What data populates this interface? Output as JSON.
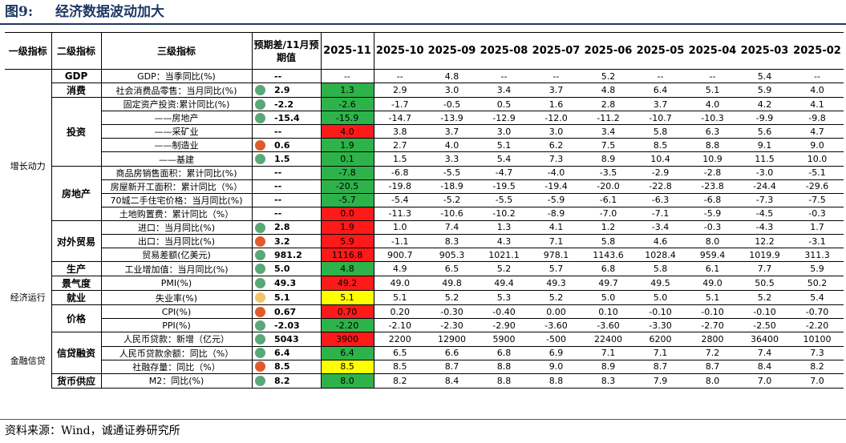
{
  "figure": {
    "number": "图9:",
    "title": "经济数据波动加大",
    "source": "资料来源：Wind，诚通证券研究所"
  },
  "colors": {
    "title": "#1f3864",
    "cell_green": "#2db34a",
    "cell_red": "#ff1a1a",
    "cell_yellow": "#ffff00",
    "dot_green": "#5aa878",
    "dot_red": "#e05a2a",
    "dot_yellow": "#f2c46a"
  },
  "header": {
    "level1": "一级指标",
    "level2": "二级指标",
    "level3": "三级指标",
    "forecast": "预期差/11月预期值",
    "months": [
      "2025-11",
      "2025-10",
      "2025-09",
      "2025-08",
      "2025-07",
      "2025-06",
      "2025-05",
      "2025-04",
      "2025-03",
      "2025-02"
    ]
  },
  "rows": [
    {
      "l1": "",
      "l2": "GDP",
      "l3": "GDP：当季同比(%)",
      "dot": "",
      "fc": "--",
      "hl": "",
      "cur": "--",
      "vals": [
        "--",
        "4.8",
        "--",
        "--",
        "5.2",
        "--",
        "--",
        "5.4",
        "--"
      ]
    },
    {
      "l1": "",
      "l2": "消费",
      "l3": "社会消费品零售：当月同比(%)",
      "dot": "green",
      "fc": "2.9",
      "hl": "green",
      "cur": "1.3",
      "vals": [
        "2.9",
        "3.0",
        "3.4",
        "3.7",
        "4.8",
        "6.4",
        "5.1",
        "5.9",
        "4.0"
      ]
    },
    {
      "l1": "",
      "l2": "",
      "l3": "固定资产投资:累计同比(%)",
      "dot": "green",
      "fc": "-2.2",
      "hl": "green",
      "cur": "-2.6",
      "vals": [
        "-1.7",
        "-0.5",
        "0.5",
        "1.6",
        "2.8",
        "3.7",
        "4.0",
        "4.2",
        "4.1"
      ]
    },
    {
      "l1": "",
      "l2": "",
      "l3": "——房地产",
      "dot": "green",
      "fc": "-15.4",
      "hl": "green",
      "cur": "-15.9",
      "vals": [
        "-14.7",
        "-13.9",
        "-12.9",
        "-12.0",
        "-11.2",
        "-10.7",
        "-10.3",
        "-9.9",
        "-9.8"
      ]
    },
    {
      "l1": "",
      "l2": "投资",
      "l3": "——采矿业",
      "dot": "",
      "fc": "--",
      "hl": "red",
      "cur": "4.0",
      "vals": [
        "3.8",
        "3.7",
        "3.0",
        "3.0",
        "3.4",
        "5.8",
        "6.3",
        "5.6",
        "4.7"
      ]
    },
    {
      "l1": "",
      "l2": "",
      "l3": "——制造业",
      "dot": "red",
      "fc": "0.6",
      "hl": "green",
      "cur": "1.9",
      "vals": [
        "2.7",
        "4.0",
        "5.1",
        "6.2",
        "7.5",
        "8.5",
        "8.8",
        "9.1",
        "9.0"
      ]
    },
    {
      "l1": "增长动力",
      "l2": "",
      "l3": "——基建",
      "dot": "green",
      "fc": "1.5",
      "hl": "green",
      "cur": "0.1",
      "vals": [
        "1.5",
        "3.3",
        "5.4",
        "7.3",
        "8.9",
        "10.4",
        "10.9",
        "11.5",
        "10.0"
      ]
    },
    {
      "l1": "",
      "l2": "",
      "l3": "商品房销售面积：累计同比(%)",
      "dot": "",
      "fc": "--",
      "hl": "green",
      "cur": "-7.8",
      "vals": [
        "-6.8",
        "-5.5",
        "-4.7",
        "-4.0",
        "-3.5",
        "-2.9",
        "-2.8",
        "-3.0",
        "-5.1"
      ]
    },
    {
      "l1": "",
      "l2": "房地产",
      "l3": "房屋新开工面积：累计同比（%）",
      "dot": "",
      "fc": "--",
      "hl": "green",
      "cur": "-20.5",
      "vals": [
        "-19.8",
        "-18.9",
        "-19.5",
        "-19.4",
        "-20.0",
        "-22.8",
        "-23.8",
        "-24.4",
        "-29.6"
      ]
    },
    {
      "l1": "",
      "l2": "",
      "l3": "70城二手住宅价格：当月同比(%)",
      "dot": "",
      "fc": "--",
      "hl": "green",
      "cur": "-5.7",
      "vals": [
        "-5.4",
        "-5.2",
        "-5.5",
        "-5.9",
        "-6.1",
        "-6.3",
        "-6.8",
        "-7.3",
        "-7.5"
      ]
    },
    {
      "l1": "",
      "l2": "",
      "l3": "土地购置费：累计同比（%）",
      "dot": "",
      "fc": "--",
      "hl": "red",
      "cur": "0.0",
      "vals": [
        "-11.3",
        "-10.6",
        "-10.2",
        "-8.9",
        "-7.0",
        "-7.1",
        "-5.9",
        "-4.5",
        "-0.3"
      ]
    },
    {
      "l1": "",
      "l2": "",
      "l3": "进口：当月同比(%)",
      "dot": "green",
      "fc": "2.8",
      "hl": "red",
      "cur": "1.9",
      "vals": [
        "1.0",
        "7.4",
        "1.3",
        "4.1",
        "1.2",
        "-3.4",
        "-0.3",
        "-4.3",
        "1.7"
      ]
    },
    {
      "l1": "",
      "l2": "对外贸易",
      "l3": "出口：当月同比(%)",
      "dot": "red",
      "fc": "3.2",
      "hl": "red",
      "cur": "5.9",
      "vals": [
        "-1.1",
        "8.3",
        "4.3",
        "7.1",
        "5.8",
        "4.6",
        "8.0",
        "12.2",
        "-3.1"
      ]
    },
    {
      "l1": "",
      "l2": "",
      "l3": "贸易差额(亿美元)",
      "dot": "green",
      "fc": "981.2",
      "hl": "red",
      "cur": "1116.8",
      "vals": [
        "900.7",
        "905.3",
        "1021.1",
        "978.1",
        "1143.6",
        "1028.4",
        "959.4",
        "1019.9",
        "311.3"
      ]
    },
    {
      "l1": "",
      "l2": "生产",
      "l3": "工业增加值：当月同比(%)",
      "dot": "green",
      "fc": "5.0",
      "hl": "green",
      "cur": "4.8",
      "vals": [
        "4.9",
        "6.5",
        "5.2",
        "5.7",
        "6.8",
        "5.8",
        "6.1",
        "7.7",
        "5.9"
      ]
    },
    {
      "l1": "",
      "l2": "景气度",
      "l3": "PMI(%)",
      "dot": "green",
      "fc": "49.3",
      "hl": "red",
      "cur": "49.2",
      "vals": [
        "49.0",
        "49.8",
        "49.4",
        "49.3",
        "49.7",
        "49.5",
        "49.0",
        "50.5",
        "50.2"
      ]
    },
    {
      "l1": "经济运行",
      "l2": "就业",
      "l3": "失业率(%)",
      "dot": "yellow",
      "fc": "5.1",
      "hl": "yellow",
      "cur": "5.1",
      "vals": [
        "5.1",
        "5.2",
        "5.3",
        "5.2",
        "5.0",
        "5.0",
        "5.1",
        "5.2",
        "5.4"
      ]
    },
    {
      "l1": "",
      "l2": "价格",
      "l3": "CPI(%)",
      "dot": "red",
      "fc": "0.67",
      "hl": "red",
      "cur": "0.70",
      "vals": [
        "0.20",
        "-0.30",
        "-0.40",
        "0.00",
        "0.10",
        "-0.10",
        "-0.10",
        "-0.10",
        "-0.70"
      ]
    },
    {
      "l1": "",
      "l2": "",
      "l3": "PPI(%)",
      "dot": "green",
      "fc": "-2.03",
      "hl": "green",
      "cur": "-2.20",
      "vals": [
        "-2.10",
        "-2.30",
        "-2.90",
        "-3.60",
        "-3.60",
        "-3.30",
        "-2.70",
        "-2.50",
        "-2.20"
      ]
    },
    {
      "l1": "",
      "l2": "",
      "l3": "人民币贷款：新增（亿元）",
      "dot": "green",
      "fc": "5043",
      "hl": "red",
      "cur": "3900",
      "vals": [
        "2200",
        "12900",
        "5900",
        "-500",
        "22400",
        "6200",
        "2800",
        "36400",
        "10100"
      ]
    },
    {
      "l1": "金融信贷",
      "l2": "信贷融资",
      "l3": "人民币贷款余额：同比（%）",
      "dot": "green",
      "fc": "6.4",
      "hl": "green",
      "cur": "6.4",
      "vals": [
        "6.5",
        "6.6",
        "6.8",
        "6.9",
        "7.1",
        "7.1",
        "7.2",
        "7.4",
        "7.3"
      ]
    },
    {
      "l1": "",
      "l2": "",
      "l3": "社融存量：同比（%）",
      "dot": "red",
      "fc": "8.5",
      "hl": "yellow",
      "cur": "8.5",
      "vals": [
        "8.5",
        "8.7",
        "8.8",
        "9.0",
        "8.9",
        "8.7",
        "8.7",
        "8.4",
        "8.2"
      ]
    },
    {
      "l1": "",
      "l2": "货币供应",
      "l3": "M2：同比(%)",
      "dot": "green",
      "fc": "8.2",
      "hl": "green",
      "cur": "8.0",
      "vals": [
        "8.2",
        "8.4",
        "8.8",
        "8.8",
        "8.3",
        "7.9",
        "8.0",
        "7.0",
        "7.0"
      ]
    }
  ]
}
